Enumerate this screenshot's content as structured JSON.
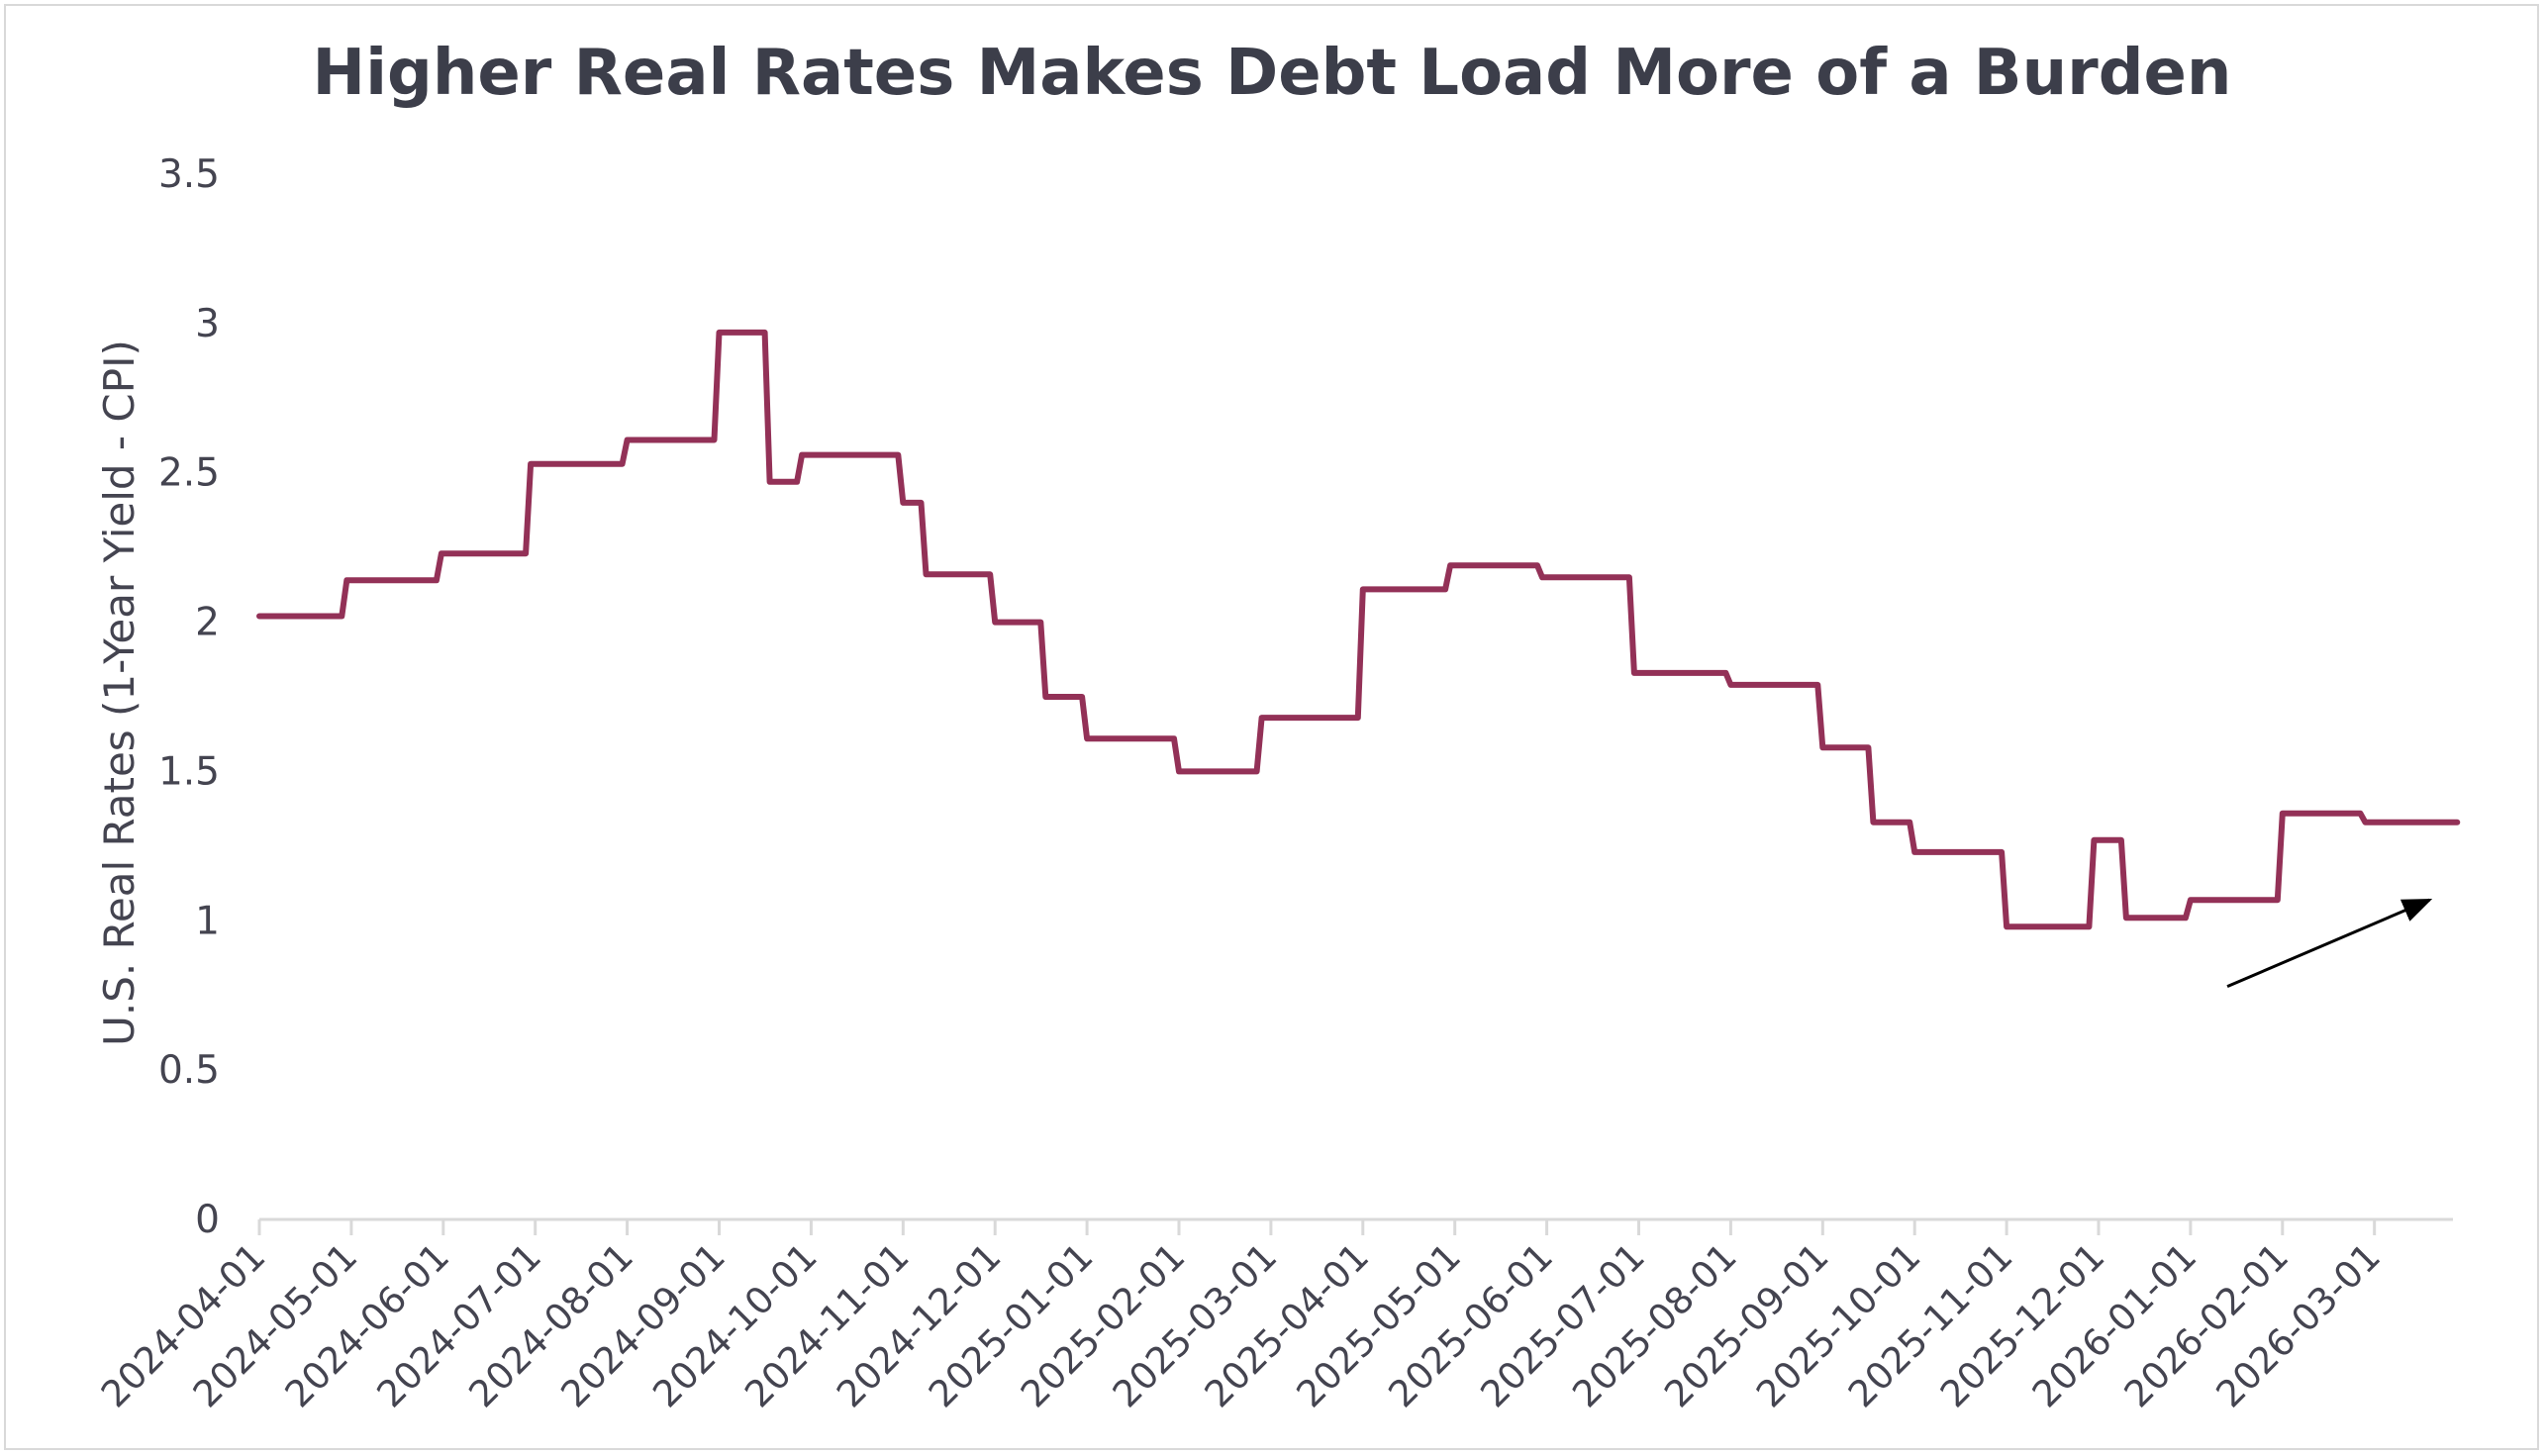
{
  "chart_data": {
    "type": "line",
    "title": "Higher Real Rates Makes Debt Load More of a Burden",
    "xlabel": "",
    "ylabel": "U.S. Real Rates (1-Year Yield - CPI)",
    "ylim": [
      0,
      3.5
    ],
    "yticks": [
      0,
      0.5,
      1,
      1.5,
      2,
      2.5,
      3,
      3.5
    ],
    "ytick_labels": [
      "0",
      "0.5",
      "1",
      "1.5",
      "2",
      "2.5",
      "3",
      "3.5"
    ],
    "xlim_months": [
      0,
      23.9
    ],
    "xtick_labels": [
      "2024-04-01",
      "2024-05-01",
      "2024-06-01",
      "2024-07-01",
      "2024-08-01",
      "2024-09-01",
      "2024-10-01",
      "2024-11-01",
      "2024-12-01",
      "2025-01-01",
      "2025-02-01",
      "2025-03-01",
      "2025-04-01",
      "2025-05-01",
      "2025-06-01",
      "2025-07-01",
      "2025-08-01",
      "2025-09-01",
      "2025-10-01",
      "2025-11-01",
      "2025-12-01",
      "2026-01-01",
      "2026-02-01",
      "2026-03-01"
    ],
    "series": [
      {
        "name": "U.S. Real Rates (1-Year Yield - CPI)",
        "color": "#933157",
        "line_shape": "step",
        "x_months": [
          0.0,
          0.95,
          1.98,
          2.95,
          4.0,
          5.0,
          5.55,
          5.9,
          7.0,
          7.25,
          8.0,
          8.55,
          9.0,
          10.0,
          10.9,
          12.0,
          12.95,
          13.95,
          14.95,
          16.0,
          17.0,
          17.55,
          18.0,
          19.0,
          19.95,
          20.3,
          21.0,
          22.0,
          22.9,
          23.9
        ],
        "values": [
          2.02,
          2.14,
          2.23,
          2.53,
          2.61,
          2.97,
          2.47,
          2.56,
          2.4,
          2.16,
          2.0,
          1.75,
          1.61,
          1.5,
          1.68,
          2.11,
          2.19,
          2.15,
          1.83,
          1.79,
          1.58,
          1.33,
          1.23,
          0.98,
          1.27,
          1.01,
          1.07,
          1.36,
          1.33,
          1.33
        ]
      }
    ],
    "annotations": [
      {
        "type": "arrow",
        "description": "upward arrow",
        "from": [
          21.4,
          0.78
        ],
        "to": [
          23.6,
          1.07
        ],
        "color": "#000000"
      }
    ],
    "grid": false,
    "legend": "none"
  }
}
